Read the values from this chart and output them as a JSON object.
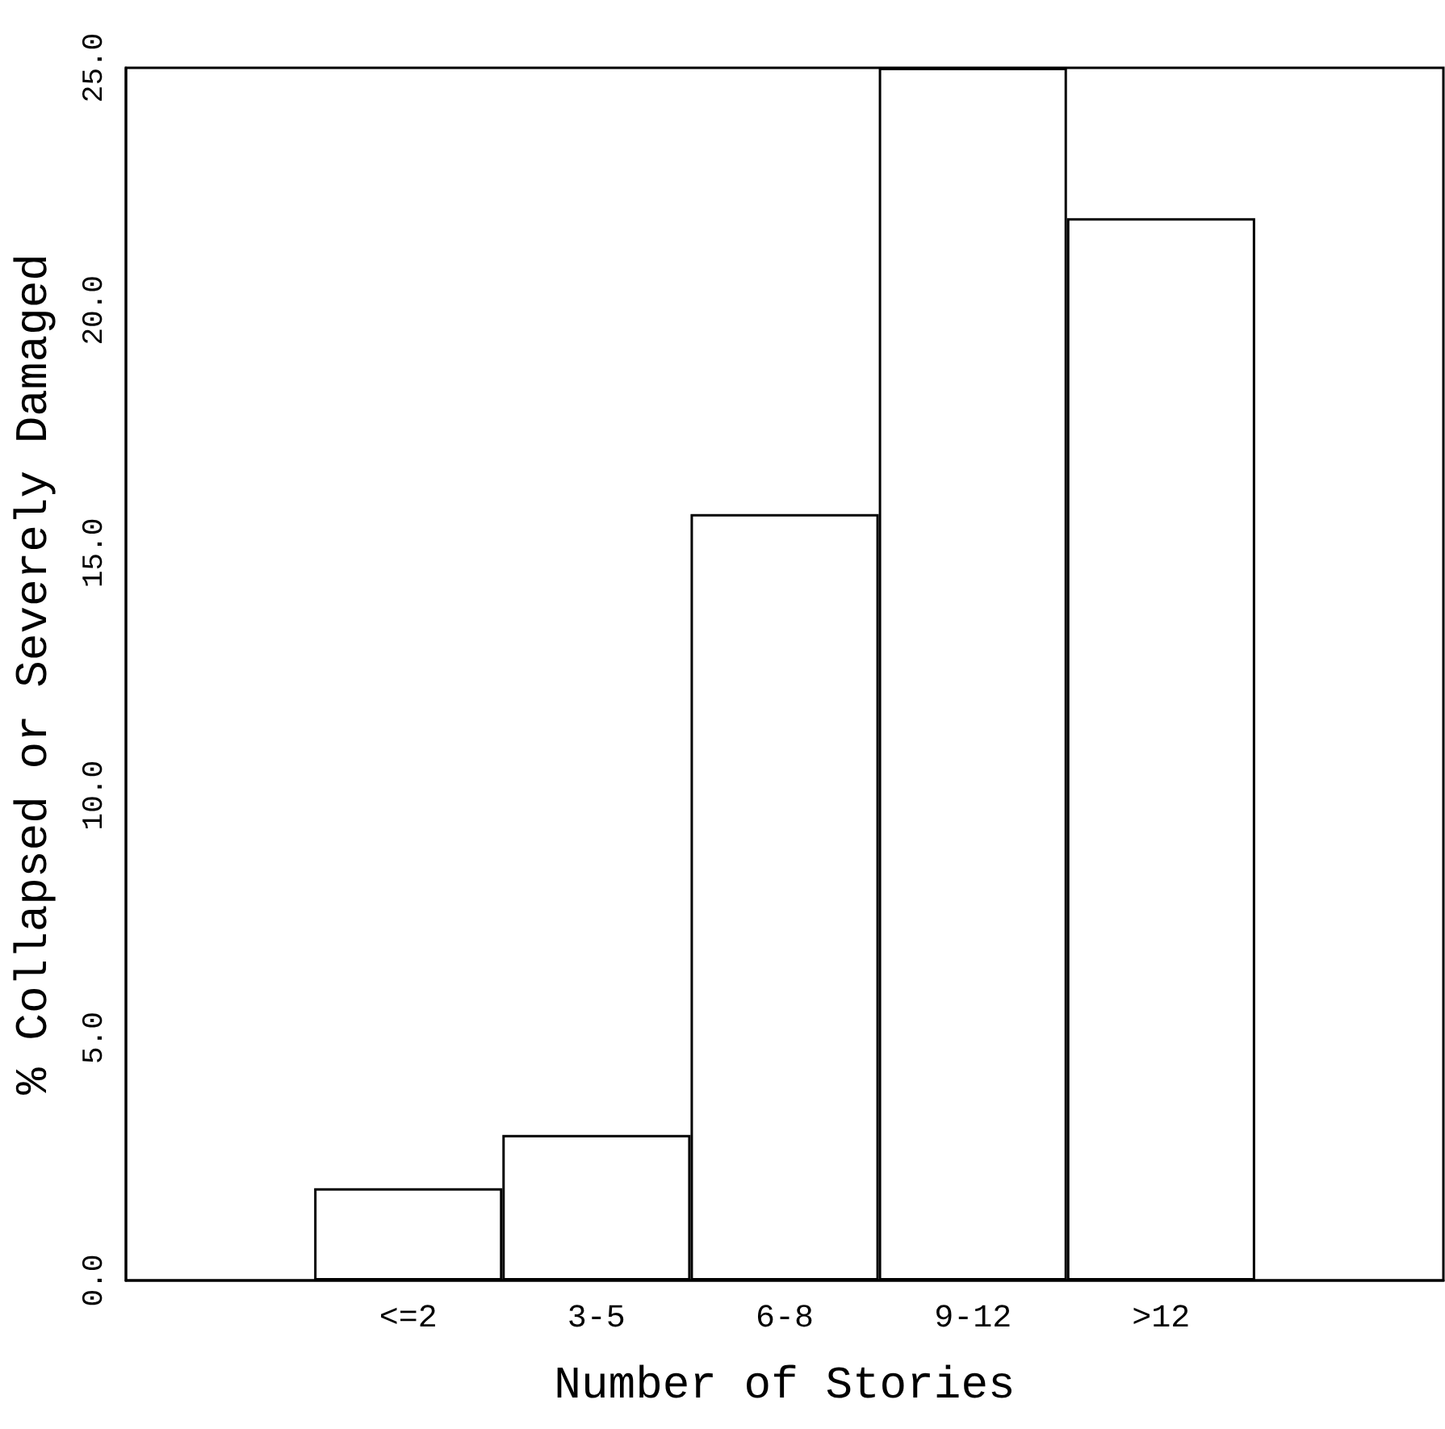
{
  "chart_data": {
    "type": "bar",
    "xlabel": "Number of Stories",
    "ylabel": "% Collapsed or Severely Damaged",
    "categories": [
      null,
      "<=2",
      "3-5",
      "6-8",
      "9-12",
      ">12",
      null
    ],
    "values": [
      null,
      1.9,
      3.0,
      15.8,
      25.0,
      21.9,
      null
    ],
    "color": "#ffffff",
    "ylim": [
      0,
      25
    ],
    "yticks": [
      {
        "value": 0,
        "label": "0.0"
      },
      {
        "value": 5,
        "label": "5.0"
      },
      {
        "value": 10,
        "label": "10.0"
      },
      {
        "value": 15,
        "label": "15.0"
      },
      {
        "value": 20,
        "label": "20.0"
      },
      {
        "value": 25,
        "label": "25.0"
      }
    ],
    "grid": false
  }
}
